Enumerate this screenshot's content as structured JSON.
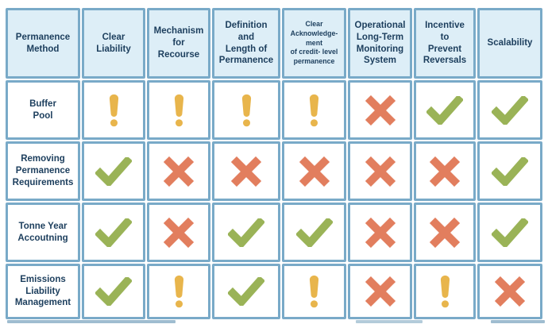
{
  "colors": {
    "border": "#79aac8",
    "header_bg": "#ddeef7",
    "text": "#1c3e5d",
    "check": "#9ab357",
    "cross": "#e27e5e",
    "warning": "#e8b54c"
  },
  "icons": {
    "check": "check-icon",
    "cross": "cross-icon",
    "warning": "exclamation-warning-icon"
  },
  "chart_data": {
    "type": "table",
    "title": "Permanence Method comparison matrix",
    "columns": [
      "Permanence Method",
      "Clear Liability",
      "Mechanism for Recourse",
      "Definition and Length of Permanence",
      "Clear Acknowledge-ment of credit- level permanence",
      "Operational Long-Term Monitoring System",
      "Incentive to Prevent Reversals",
      "Scalability"
    ],
    "rows": [
      {
        "method": "Buffer Pool",
        "values": [
          "warning",
          "warning",
          "warning",
          "warning",
          "cross",
          "check",
          "check"
        ]
      },
      {
        "method": "Removing Permanence Requirements",
        "values": [
          "check",
          "cross",
          "cross",
          "cross",
          "cross",
          "cross",
          "check"
        ]
      },
      {
        "method": "Tonne Year Accoutning",
        "values": [
          "check",
          "cross",
          "check",
          "check",
          "cross",
          "cross",
          "check"
        ]
      },
      {
        "method": "Emissions Liability Management",
        "values": [
          "check",
          "warning",
          "check",
          "warning",
          "cross",
          "warning",
          "cross"
        ]
      }
    ]
  },
  "table": {
    "columns": [
      "Permanence\nMethod",
      "Clear\nLiability",
      "Mechanism\nfor\nRecourse",
      "Definition\nand\nLength of\nPermanence",
      "Clear\nAcknowledge-\nment\nof credit- level\npermanence",
      "Operational\nLong-Term\nMonitoring\nSystem",
      "Incentive\nto\nPrevent\nReversals",
      "Scalability"
    ],
    "rows": [
      {
        "label": "Buffer\nPool",
        "cells": [
          "warning",
          "warning",
          "warning",
          "warning",
          "cross",
          "check",
          "check"
        ]
      },
      {
        "label": "Removing\nPermanence\nRequirements",
        "cells": [
          "check",
          "cross",
          "cross",
          "cross",
          "cross",
          "cross",
          "check"
        ]
      },
      {
        "label": "Tonne Year\nAccoutning",
        "cells": [
          "check",
          "cross",
          "check",
          "check",
          "cross",
          "cross",
          "check"
        ]
      },
      {
        "label": "Emissions\nLiability\nManagement",
        "cells": [
          "check",
          "warning",
          "check",
          "warning",
          "cross",
          "warning",
          "cross"
        ]
      }
    ]
  }
}
